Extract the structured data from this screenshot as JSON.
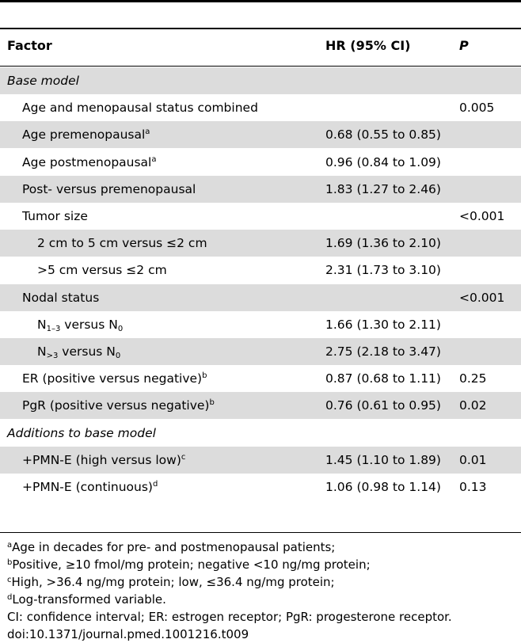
{
  "table": {
    "headers": {
      "factor": "Factor",
      "hr": "HR (95% CI)",
      "p": "P"
    },
    "rows": [
      {
        "factor": "Base model",
        "hr": "",
        "p": "",
        "section": true,
        "shaded": true
      },
      {
        "factor": "Age and menopausal status combined",
        "hr": "",
        "p": "0.005",
        "indent": 1
      },
      {
        "factor": "Age premenopausal",
        "sup": "a",
        "hr": "0.68 (0.55 to 0.85)",
        "p": "",
        "indent": 1,
        "shaded": true
      },
      {
        "factor": "Age postmenopausal",
        "sup": "a",
        "hr": "0.96 (0.84 to 1.09)",
        "p": "",
        "indent": 1
      },
      {
        "factor": "Post- versus premenopausal",
        "hr": "1.83 (1.27 to 2.46)",
        "p": "",
        "indent": 1,
        "shaded": true
      },
      {
        "factor": "Tumor size",
        "hr": "",
        "p": "<0.001",
        "indent": 1
      },
      {
        "factor": "2 cm to 5 cm versus ≤2 cm",
        "hr": "1.69 (1.36 to 2.10)",
        "p": "",
        "indent": 2,
        "shaded": true
      },
      {
        "factor": ">5 cm versus ≤2 cm",
        "hr": "2.31 (1.73 to 3.10)",
        "p": "",
        "indent": 2
      },
      {
        "factor": "Nodal status",
        "hr": "",
        "p": "<0.001",
        "indent": 1,
        "shaded": true
      },
      {
        "factor_parts": [
          "N",
          "1–3",
          " versus N",
          "0"
        ],
        "hr": "1.66 (1.30 to 2.11)",
        "p": "",
        "indent": 2
      },
      {
        "factor_parts": [
          "N",
          ">3",
          " versus N",
          "0"
        ],
        "hr": "2.75 (2.18 to 3.47)",
        "p": "",
        "indent": 2,
        "shaded": true
      },
      {
        "factor": "ER (positive versus negative)",
        "sup": "b",
        "hr": "0.87 (0.68 to 1.11)",
        "p": "0.25",
        "indent": 1
      },
      {
        "factor": "PgR (positive versus negative)",
        "sup": "b",
        "hr": "0.76 (0.61 to 0.95)",
        "p": "0.02",
        "indent": 1,
        "shaded": true
      },
      {
        "factor": "Additions to base model",
        "hr": "",
        "p": "",
        "section": true
      },
      {
        "factor": "+PMN-E (high versus low)",
        "sup": "c",
        "hr": "1.45 (1.10 to 1.89)",
        "p": "0.01",
        "indent": 1,
        "shaded": true
      },
      {
        "factor": "+PMN-E (continuous)",
        "sup": "d",
        "hr": "1.06 (0.98 to 1.14)",
        "p": "0.13",
        "indent": 1
      }
    ]
  },
  "footnotes": [
    {
      "mark": "a",
      "text": "Age in decades for pre- and postmenopausal patients;"
    },
    {
      "mark": "b",
      "text": "Positive, ≥10 fmol/mg protein; negative <10 ng/mg protein;"
    },
    {
      "mark": "c",
      "text": "High, >36.4 ng/mg protein; low, ≤36.4 ng/mg protein;"
    },
    {
      "mark": "d",
      "text": "Log-transformed variable."
    },
    {
      "mark": "",
      "text": "CI: confidence interval; ER: estrogen receptor; PgR: progesterone receptor."
    },
    {
      "mark": "",
      "text": "doi:10.1371/journal.pmed.1001216.t009"
    }
  ]
}
